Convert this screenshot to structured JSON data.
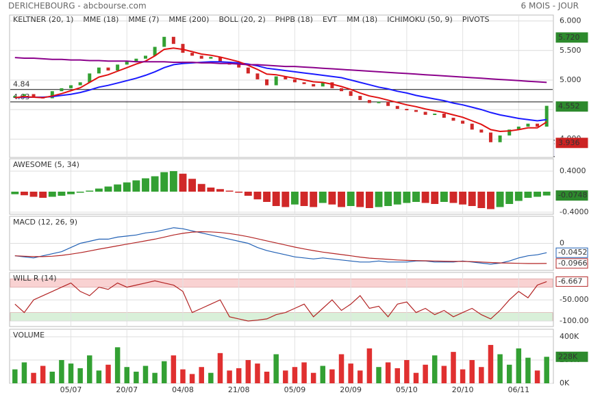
{
  "header": {
    "title": "DERICHEBOURG - abcbourse.com",
    "period": "6 MOIS - JOUR"
  },
  "chart_data": [
    {
      "type": "candlestick",
      "values": [
        4.72,
        4.75,
        4.7,
        4.68,
        4.8,
        4.85,
        4.9,
        4.95,
        5.1,
        5.2,
        5.15,
        5.25,
        5.3,
        5.35,
        5.4,
        5.55,
        5.72,
        5.6,
        5.45,
        5.4,
        5.35,
        5.38,
        5.3,
        5.25,
        5.2,
        5.1,
        5.0,
        4.9,
        5.05,
        5.0,
        4.95,
        4.92,
        4.88,
        4.95,
        4.85,
        4.8,
        4.72,
        4.65,
        4.6,
        4.62,
        4.55,
        4.5,
        4.48,
        4.45,
        4.4,
        4.42,
        4.35,
        4.3,
        4.25,
        4.15,
        4.1,
        3.936,
        4.05,
        4.15,
        4.2,
        4.25,
        4.2,
        4.552
      ],
      "colors": {
        "up": "#33a033",
        "down": "#d02828"
      },
      "series": [
        {
          "name": "KELTNER (20, 1)",
          "color": "#2d8a2d"
        },
        {
          "name": "MME (18)",
          "color": "#1a1aff",
          "values": [
            4.7,
            4.71,
            4.71,
            4.71,
            4.72,
            4.74,
            4.76,
            4.79,
            4.83,
            4.88,
            4.91,
            4.95,
            4.99,
            5.03,
            5.08,
            5.14,
            5.21,
            5.26,
            5.28,
            5.29,
            5.3,
            5.31,
            5.31,
            5.3,
            5.29,
            5.27,
            5.24,
            5.2,
            5.18,
            5.16,
            5.14,
            5.12,
            5.1,
            5.08,
            5.06,
            5.04,
            5.0,
            4.96,
            4.92,
            4.88,
            4.85,
            4.81,
            4.78,
            4.74,
            4.71,
            4.68,
            4.65,
            4.61,
            4.58,
            4.54,
            4.5,
            4.45,
            4.41,
            4.38,
            4.35,
            4.33,
            4.31,
            4.33
          ]
        },
        {
          "name": "MME (7)",
          "color": "#e01010",
          "values": [
            4.7,
            4.72,
            4.71,
            4.7,
            4.73,
            4.77,
            4.82,
            4.87,
            4.96,
            5.05,
            5.09,
            5.15,
            5.21,
            5.27,
            5.32,
            5.41,
            5.52,
            5.54,
            5.52,
            5.48,
            5.44,
            5.42,
            5.39,
            5.35,
            5.31,
            5.25,
            5.18,
            5.1,
            5.09,
            5.06,
            5.03,
            5.0,
            4.97,
            4.96,
            4.93,
            4.89,
            4.84,
            4.78,
            4.73,
            4.7,
            4.66,
            4.62,
            4.58,
            4.55,
            4.51,
            4.48,
            4.45,
            4.41,
            4.37,
            4.31,
            4.25,
            4.16,
            4.13,
            4.14,
            4.16,
            4.19,
            4.19,
            4.29
          ]
        },
        {
          "name": "MME (200)",
          "color": "#8b008b",
          "values": [
            5.38,
            5.37,
            5.37,
            5.36,
            5.35,
            5.35,
            5.34,
            5.34,
            5.33,
            5.33,
            5.32,
            5.32,
            5.32,
            5.31,
            5.31,
            5.31,
            5.31,
            5.3,
            5.3,
            5.3,
            5.29,
            5.29,
            5.28,
            5.28,
            5.27,
            5.26,
            5.26,
            5.25,
            5.24,
            5.23,
            5.23,
            5.22,
            5.21,
            5.2,
            5.19,
            5.18,
            5.17,
            5.16,
            5.15,
            5.14,
            5.13,
            5.12,
            5.11,
            5.1,
            5.09,
            5.08,
            5.07,
            5.06,
            5.05,
            5.04,
            5.03,
            5.02,
            5.01,
            5.0,
            4.99,
            4.98,
            4.97,
            4.96
          ]
        },
        {
          "name": "BOLL (20, 2)",
          "color": "#f0a040"
        },
        {
          "name": "PHPB (18)",
          "color": "#2d8a2d"
        },
        {
          "name": "EVT",
          "color": "#2d8a2d"
        },
        {
          "name": "MM (18)",
          "color": "#8b4513"
        },
        {
          "name": "ICHIMOKU (50, 9)",
          "color": "#1f5fb4"
        },
        {
          "name": "PIVOTS",
          "color": "#333333"
        }
      ],
      "ylim": [
        3.69,
        6.1
      ],
      "yticks": [
        {
          "value": 4,
          "label": "4.000"
        },
        {
          "value": 4.5,
          "label": "4.500"
        },
        {
          "value": 5,
          "label": "5.000"
        },
        {
          "value": 5.5,
          "label": "5.500"
        },
        {
          "value": 6,
          "label": "6.000"
        }
      ],
      "levels": [
        {
          "value": 4.84,
          "label": "4.84"
        },
        {
          "value": 4.63,
          "label": "4.63"
        }
      ],
      "markers": [
        {
          "value": 5.72,
          "label": "5.720",
          "color": "#2d8a2d",
          "filled": true
        },
        {
          "value": 4.552,
          "label": "4.552",
          "color": "#2d8a2d",
          "filled": true
        },
        {
          "value": 3.936,
          "label": "3.936",
          "color": "#cc2222",
          "filled": true
        }
      ],
      "grid": true
    },
    {
      "type": "bar",
      "title": "AWESOME (5, 34)",
      "values": [
        -0.05,
        -0.07,
        -0.1,
        -0.12,
        -0.1,
        -0.08,
        -0.05,
        -0.02,
        0.02,
        0.06,
        0.1,
        0.14,
        0.18,
        0.22,
        0.26,
        0.3,
        0.38,
        0.4,
        0.35,
        0.25,
        0.15,
        0.08,
        0.05,
        0.02,
        -0.02,
        -0.08,
        -0.15,
        -0.2,
        -0.28,
        -0.3,
        -0.25,
        -0.28,
        -0.3,
        -0.22,
        -0.25,
        -0.3,
        -0.28,
        -0.3,
        -0.32,
        -0.3,
        -0.28,
        -0.25,
        -0.22,
        -0.2,
        -0.22,
        -0.24,
        -0.2,
        -0.22,
        -0.25,
        -0.28,
        -0.32,
        -0.34,
        -0.3,
        -0.24,
        -0.18,
        -0.12,
        -0.1,
        -0.0748
      ],
      "colors": {
        "up": "#33a033",
        "down": "#d02828"
      },
      "color_by": "self",
      "ylim": [
        -0.44,
        0.64
      ],
      "yticks": [
        {
          "value": 0.4,
          "label": "0.4000"
        },
        {
          "value": -0.4,
          "label": "-0.4000"
        }
      ],
      "markers": [
        {
          "value": -0.0748,
          "label": "-0.0748",
          "color": "#2d8a2d",
          "filled": true
        }
      ],
      "grid": true
    },
    {
      "type": "line",
      "title": "MACD (12, 26, 9)",
      "series": [
        {
          "color": "#1f5fb4",
          "values": [
            -0.06,
            -0.065,
            -0.07,
            -0.06,
            -0.05,
            -0.04,
            -0.02,
            0.0,
            0.01,
            0.02,
            0.02,
            0.03,
            0.035,
            0.04,
            0.05,
            0.055,
            0.065,
            0.075,
            0.07,
            0.06,
            0.05,
            0.04,
            0.03,
            0.02,
            0.01,
            0.0,
            -0.02,
            -0.035,
            -0.045,
            -0.055,
            -0.065,
            -0.07,
            -0.075,
            -0.07,
            -0.075,
            -0.08,
            -0.085,
            -0.09,
            -0.09,
            -0.085,
            -0.09,
            -0.09,
            -0.09,
            -0.085,
            -0.085,
            -0.09,
            -0.09,
            -0.09,
            -0.085,
            -0.09,
            -0.095,
            -0.1,
            -0.095,
            -0.085,
            -0.07,
            -0.06,
            -0.055,
            -0.0452
          ]
        },
        {
          "color": "#b22222",
          "values": [
            -0.06,
            -0.062,
            -0.064,
            -0.064,
            -0.062,
            -0.058,
            -0.052,
            -0.045,
            -0.037,
            -0.028,
            -0.02,
            -0.012,
            -0.004,
            0.004,
            0.012,
            0.02,
            0.03,
            0.04,
            0.048,
            0.054,
            0.056,
            0.055,
            0.052,
            0.047,
            0.04,
            0.032,
            0.022,
            0.012,
            0.002,
            -0.008,
            -0.018,
            -0.027,
            -0.035,
            -0.042,
            -0.048,
            -0.054,
            -0.06,
            -0.066,
            -0.071,
            -0.074,
            -0.077,
            -0.08,
            -0.082,
            -0.083,
            -0.084,
            -0.085,
            -0.086,
            -0.087,
            -0.087,
            -0.088,
            -0.09,
            -0.092,
            -0.094,
            -0.095,
            -0.096,
            -0.097,
            -0.097,
            -0.0966
          ]
        }
      ],
      "ylim": [
        -0.13,
        0.13
      ],
      "yticks": [
        0
      ],
      "markers": [
        {
          "value": -0.0452,
          "label": "-0.0452",
          "color": "#1f5fb4",
          "filled": false
        },
        {
          "value": -0.0966,
          "label": "-0.0966",
          "color": "#b22222",
          "filled": false
        }
      ],
      "grid": true
    },
    {
      "type": "line",
      "title": "WILL R (14)",
      "series": [
        {
          "color": "#b22222",
          "values": [
            -60,
            -80,
            -50,
            -40,
            -30,
            -20,
            -10,
            -30,
            -40,
            -20,
            -25,
            -10,
            -20,
            -15,
            -10,
            -5,
            -10,
            -15,
            -30,
            -80,
            -70,
            -60,
            -50,
            -90,
            -95,
            -100,
            -98,
            -95,
            -85,
            -80,
            -70,
            -60,
            -90,
            -70,
            -50,
            -75,
            -60,
            -40,
            -70,
            -65,
            -90,
            -60,
            -55,
            -80,
            -70,
            -85,
            -75,
            -90,
            -80,
            -70,
            -85,
            -95,
            -75,
            -50,
            -30,
            -45,
            -15,
            -6.667
          ]
        }
      ],
      "zones": [
        {
          "from": -20,
          "to": 0,
          "color": "#f9d2d2"
        },
        {
          "from": -100,
          "to": -80,
          "color": "#d9f0d9"
        }
      ],
      "ylim": [
        -113,
        15
      ],
      "yticks": [
        {
          "value": -50,
          "label": "-50.000"
        },
        {
          "value": -100,
          "label": "-100.00"
        }
      ],
      "markers": [
        {
          "value": -6.667,
          "label": "-6.667",
          "color": "#b22222",
          "filled": false
        }
      ],
      "grid": true
    },
    {
      "type": "bar",
      "title": "VOLUME",
      "categories": [
        null,
        null,
        null,
        null,
        null,
        null,
        "05/07",
        null,
        null,
        null,
        null,
        null,
        "20/07",
        null,
        null,
        null,
        null,
        null,
        "04/08",
        null,
        null,
        null,
        null,
        null,
        "21/08",
        null,
        null,
        null,
        null,
        null,
        "05/09",
        null,
        null,
        null,
        null,
        null,
        "20/09",
        null,
        null,
        null,
        null,
        null,
        "05/10",
        null,
        null,
        null,
        null,
        null,
        "20/10",
        null,
        null,
        null,
        null,
        null,
        "06/11",
        null,
        null,
        null
      ],
      "values": [
        120000,
        180000,
        90000,
        150000,
        100000,
        200000,
        170000,
        130000,
        240000,
        110000,
        160000,
        310000,
        140000,
        100000,
        150000,
        90000,
        190000,
        240000,
        120000,
        80000,
        140000,
        90000,
        260000,
        110000,
        130000,
        200000,
        170000,
        100000,
        250000,
        110000,
        140000,
        180000,
        90000,
        150000,
        120000,
        250000,
        170000,
        110000,
        300000,
        140000,
        180000,
        130000,
        200000,
        90000,
        160000,
        240000,
        150000,
        270000,
        120000,
        200000,
        140000,
        330000,
        250000,
        160000,
        300000,
        220000,
        110000,
        228000
      ],
      "colors": {
        "up": "#33a033",
        "down": "#e03030"
      },
      "color_by": "price",
      "ylim": [
        0,
        465000
      ],
      "yticks": [
        {
          "value": 0,
          "label": "0K"
        },
        {
          "value": 200000,
          "label": "200K"
        },
        {
          "value": 400000,
          "label": "400K"
        }
      ],
      "markers": [
        {
          "value": 228000,
          "label": "228K",
          "color": "#2d8a2d",
          "filled": true
        }
      ],
      "grid": true
    }
  ]
}
